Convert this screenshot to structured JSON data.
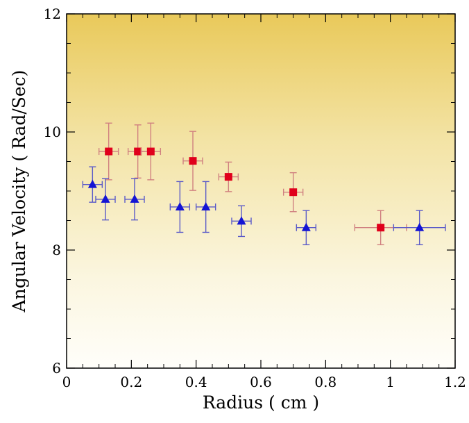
{
  "chart_data": {
    "type": "scatter",
    "title": "",
    "xlabel": "Radius ( cm )",
    "ylabel": "Angular Velocity ( Rad/Sec)",
    "xlim": [
      0,
      1.2
    ],
    "ylim": [
      6,
      12
    ],
    "x_ticks": [
      "0",
      "0.2",
      "0.4",
      "0.6",
      "0.8",
      "1",
      "1.2"
    ],
    "y_ticks": [
      "6",
      "8",
      "10",
      "12"
    ],
    "grid": false,
    "legend": "none",
    "background": "vertical gradient: gold at top fading to near-white at bottom",
    "series": [
      {
        "marker": "square",
        "color": "#e0001b",
        "errorbar_color": "#d08080",
        "points": [
          {
            "x": 0.13,
            "y": 9.67,
            "xerr": 0.03,
            "yerr": 0.48
          },
          {
            "x": 0.22,
            "y": 9.67,
            "xerr": 0.03,
            "yerr": 0.45
          },
          {
            "x": 0.26,
            "y": 9.67,
            "xerr": 0.03,
            "yerr": 0.48
          },
          {
            "x": 0.39,
            "y": 9.51,
            "xerr": 0.03,
            "yerr": 0.5
          },
          {
            "x": 0.5,
            "y": 9.24,
            "xerr": 0.03,
            "yerr": 0.25
          },
          {
            "x": 0.7,
            "y": 8.98,
            "xerr": 0.03,
            "yerr": 0.33
          },
          {
            "x": 0.97,
            "y": 8.38,
            "xerr": 0.08,
            "yerr": 0.29
          }
        ]
      },
      {
        "marker": "triangle",
        "color": "#1414d4",
        "errorbar_color": "#5a5ac8",
        "points": [
          {
            "x": 0.08,
            "y": 9.11,
            "xerr": 0.03,
            "yerr": 0.3
          },
          {
            "x": 0.12,
            "y": 8.86,
            "xerr": 0.03,
            "yerr": 0.35
          },
          {
            "x": 0.21,
            "y": 8.86,
            "xerr": 0.03,
            "yerr": 0.35
          },
          {
            "x": 0.35,
            "y": 8.73,
            "xerr": 0.03,
            "yerr": 0.43
          },
          {
            "x": 0.43,
            "y": 8.73,
            "xerr": 0.03,
            "yerr": 0.43
          },
          {
            "x": 0.54,
            "y": 8.49,
            "xerr": 0.03,
            "yerr": 0.26
          },
          {
            "x": 0.74,
            "y": 8.38,
            "xerr": 0.03,
            "yerr": 0.29
          },
          {
            "x": 1.09,
            "y": 8.38,
            "xerr": 0.08,
            "yerr": 0.29
          }
        ]
      }
    ]
  }
}
